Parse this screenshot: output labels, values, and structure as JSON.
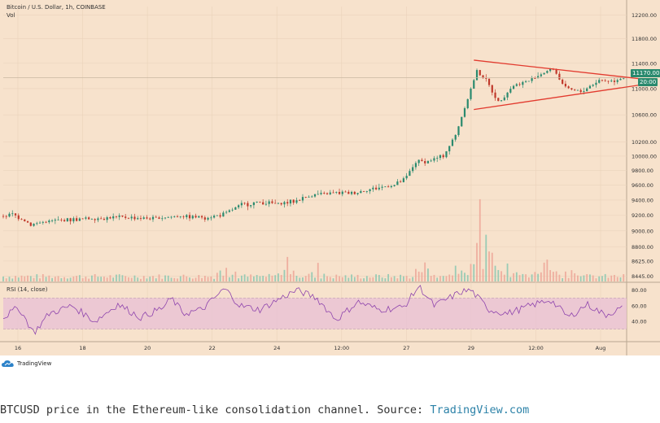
{
  "header": {
    "symbol_title": "Bitcoin / U.S. Dollar, 1h, COINBASE",
    "volume_label": "Vol",
    "rsi_label": "RSI (14, close)"
  },
  "price_badges": {
    "last_price": "11170.00",
    "countdown": "20:00"
  },
  "footer": {
    "logo_text": "TradingView",
    "caption_text": "BTCUSD price in the Ethereum-like consolidation channel. Source: ",
    "caption_link": "TradingView.com"
  },
  "colors": {
    "background": "#f7e2cc",
    "up": "#2a8a6e",
    "down": "#c0392b",
    "trendline": "#e23a2e",
    "rsi_line": "#8e44ad",
    "rsi_band": "#e8c2d4"
  },
  "chart_data": {
    "type": "candlestick",
    "title": "Bitcoin / U.S. Dollar, 1h, COINBASE",
    "price_axis": {
      "scale": "log",
      "ticks": [
        8445,
        8625,
        8800,
        9000,
        9200,
        9400,
        9600,
        9800,
        10000,
        10200,
        10600,
        11000,
        11400,
        11800,
        12200
      ],
      "tick_labels": [
        "8445.00",
        "8625.00",
        "8800.00",
        "9000.00",
        "9200.00",
        "9400.00",
        "9600.00",
        "9800.00",
        "10000.00",
        "10200.00",
        "10600.00",
        "11000.00",
        "11400.00",
        "11800.00",
        "12200.00"
      ],
      "range": [
        8380,
        12350
      ]
    },
    "time_axis": {
      "tick_labels": [
        "16",
        "18",
        "20",
        "22",
        "24",
        "12:00",
        "27",
        "29",
        "12:00",
        "Aug"
      ],
      "range_hours": [
        0,
        408
      ]
    },
    "price_path": [
      [
        0,
        9190
      ],
      [
        8,
        9210
      ],
      [
        14,
        9160
      ],
      [
        20,
        9080
      ],
      [
        30,
        9120
      ],
      [
        44,
        9140
      ],
      [
        60,
        9160
      ],
      [
        80,
        9175
      ],
      [
        100,
        9160
      ],
      [
        118,
        9190
      ],
      [
        135,
        9175
      ],
      [
        146,
        9210
      ],
      [
        158,
        9340
      ],
      [
        170,
        9370
      ],
      [
        182,
        9350
      ],
      [
        192,
        9380
      ],
      [
        204,
        9470
      ],
      [
        218,
        9490
      ],
      [
        232,
        9500
      ],
      [
        246,
        9560
      ],
      [
        258,
        9600
      ],
      [
        265,
        9680
      ],
      [
        272,
        9920
      ],
      [
        280,
        9930
      ],
      [
        290,
        10000
      ],
      [
        298,
        10300
      ],
      [
        306,
        10850
      ],
      [
        312,
        11280
      ],
      [
        318,
        11120
      ],
      [
        326,
        10800
      ],
      [
        336,
        11050
      ],
      [
        346,
        11120
      ],
      [
        356,
        11260
      ],
      [
        362,
        11310
      ],
      [
        370,
        11000
      ],
      [
        380,
        10950
      ],
      [
        392,
        11130
      ],
      [
        401,
        11120
      ],
      [
        406,
        11170
      ]
    ],
    "candle_hours": 2,
    "last_price": 11170,
    "volume": {
      "scale_max": 80,
      "spikes": [
        [
          146,
          25
        ],
        [
          186,
          32
        ],
        [
          206,
          25
        ],
        [
          276,
          32
        ],
        [
          296,
          20
        ],
        [
          310,
          58
        ],
        [
          312,
          90
        ],
        [
          316,
          55
        ],
        [
          320,
          40
        ],
        [
          330,
          30
        ],
        [
          355,
          30
        ],
        [
          372,
          22
        ]
      ]
    },
    "rsi": {
      "ticks": [
        40,
        60,
        80
      ],
      "tick_labels": [
        "40.00",
        "60.00",
        "80.00"
      ],
      "overbought": 70,
      "oversold": 30,
      "range": [
        15,
        88
      ],
      "path": [
        [
          0,
          45
        ],
        [
          10,
          58
        ],
        [
          20,
          25
        ],
        [
          30,
          50
        ],
        [
          45,
          60
        ],
        [
          60,
          40
        ],
        [
          75,
          62
        ],
        [
          90,
          45
        ],
        [
          105,
          58
        ],
        [
          110,
          70
        ],
        [
          118,
          50
        ],
        [
          130,
          55
        ],
        [
          145,
          82
        ],
        [
          155,
          60
        ],
        [
          168,
          55
        ],
        [
          180,
          68
        ],
        [
          192,
          80
        ],
        [
          205,
          70
        ],
        [
          218,
          42
        ],
        [
          232,
          65
        ],
        [
          246,
          55
        ],
        [
          262,
          58
        ],
        [
          272,
          85
        ],
        [
          282,
          60
        ],
        [
          292,
          70
        ],
        [
          300,
          78
        ],
        [
          306,
          80
        ],
        [
          318,
          55
        ],
        [
          330,
          50
        ],
        [
          345,
          60
        ],
        [
          358,
          68
        ],
        [
          370,
          45
        ],
        [
          382,
          62
        ],
        [
          394,
          48
        ],
        [
          406,
          58
        ]
      ]
    },
    "trendlines": [
      {
        "name": "upper",
        "from": [
          308,
          11450
        ],
        "to": [
          418,
          11150
        ]
      },
      {
        "name": "lower",
        "from": [
          308,
          10680
        ],
        "to": [
          418,
          11060
        ]
      }
    ],
    "grid": true
  }
}
